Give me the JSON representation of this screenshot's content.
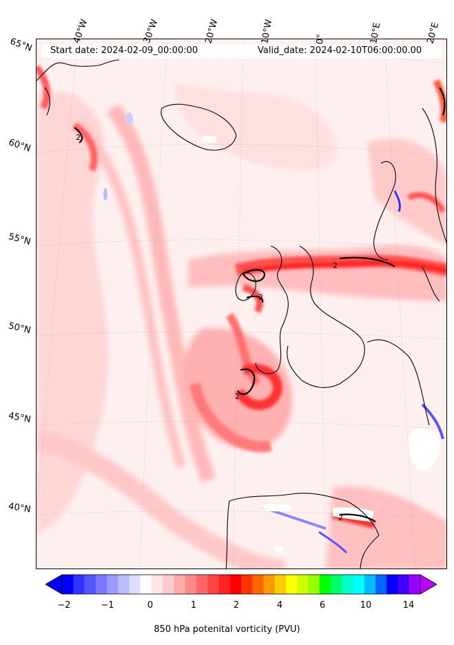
{
  "header": {
    "start_date": "Start date: 2024-02-09_00:00:00",
    "valid_date": "Valid_date: 2024-02-10T06:00:00.00"
  },
  "map": {
    "longitude_labels": [
      "40°W",
      "30°W",
      "20°W",
      "10°W",
      "0°",
      "10°E",
      "20°E"
    ],
    "latitude_labels": [
      "65°N",
      "60°N",
      "55°N",
      "50°N",
      "45°N",
      "40°N"
    ],
    "contour_label": "2"
  },
  "colorbar": {
    "label": "850 hPa potenital vorticity (PVU)",
    "tick_labels": [
      "−2",
      "−1",
      "0",
      "1",
      "2",
      "4",
      "6",
      "10",
      "14"
    ],
    "colors": [
      "#0000ff",
      "#3333ff",
      "#5555ff",
      "#7777ff",
      "#9999ff",
      "#bbbbff",
      "#ddddff",
      "#ffffff",
      "#ffe5e5",
      "#ffcccc",
      "#ffaaaa",
      "#ff8888",
      "#ff6666",
      "#ff4444",
      "#ff2222",
      "#ff0000",
      "#ff3300",
      "#ff6600",
      "#ff9900",
      "#ffcc00",
      "#ffff00",
      "#ccff00",
      "#99ff00",
      "#00ff00",
      "#00ff66",
      "#00ffcc",
      "#00ffff",
      "#00bbff",
      "#0066ff",
      "#0000ff",
      "#4400ff",
      "#9900ff"
    ],
    "under_color": "#0000ff",
    "over_color": "#bb00ff"
  }
}
